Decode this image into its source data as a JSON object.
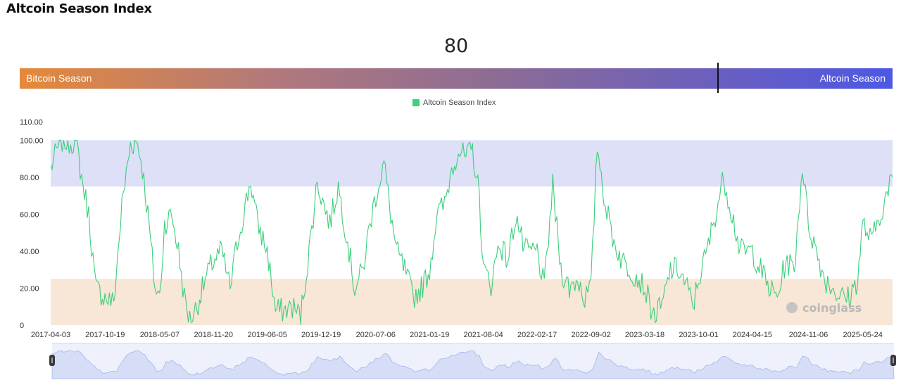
{
  "header": {
    "title": "Altcoin Season Index"
  },
  "current_value": "80",
  "gauge": {
    "left_label": "Bitcoin Season",
    "right_label": "Altcoin Season",
    "value": 80
  },
  "legend": {
    "series_name": "Altcoin Season Index",
    "color": "#3ccf7c"
  },
  "watermark": "coinglass",
  "chart_data": {
    "type": "line",
    "title": "",
    "xlabel": "",
    "ylabel": "",
    "ylim": [
      0,
      110
    ],
    "yticks": [
      "0",
      "20.00",
      "40.00",
      "60.00",
      "80.00",
      "100.00",
      "110.00"
    ],
    "xticks": [
      "2017-04-03",
      "2017-10-19",
      "2018-05-07",
      "2018-11-20",
      "2019-06-05",
      "2019-12-19",
      "2020-07-06",
      "2021-01-19",
      "2021-08-04",
      "2022-02-17",
      "2022-09-02",
      "2023-03-18",
      "2023-10-01",
      "2024-04-15",
      "2024-11-06",
      "2025-05-24"
    ],
    "bands": [
      {
        "name": "Altcoin Season zone",
        "from": 75,
        "to": 100,
        "color": "#dde0f7"
      },
      {
        "name": "Bitcoin Season zone",
        "from": 0,
        "to": 25,
        "color": "#f8e6d6"
      }
    ],
    "grid": false,
    "legend_position": "top-center",
    "series": [
      {
        "name": "Altcoin Season Index",
        "color": "#3ccf7c",
        "x": [
          "2017-04-03",
          "2017-05-10",
          "2017-06-10",
          "2017-07-05",
          "2017-07-25",
          "2017-08-20",
          "2017-09-15",
          "2017-10-19",
          "2017-11-20",
          "2017-12-20",
          "2018-01-20",
          "2018-02-15",
          "2018-03-05",
          "2018-03-25",
          "2018-04-20",
          "2018-05-07",
          "2018-05-25",
          "2018-06-20",
          "2018-07-15",
          "2018-08-05",
          "2018-08-25",
          "2018-09-20",
          "2018-10-15",
          "2018-11-05",
          "2018-11-20",
          "2018-12-20",
          "2019-01-20",
          "2019-02-15",
          "2019-03-10",
          "2019-04-05",
          "2019-04-30",
          "2019-06-05",
          "2019-07-05",
          "2019-08-05",
          "2019-09-05",
          "2019-10-05",
          "2019-11-05",
          "2019-12-05",
          "2019-12-19",
          "2020-01-20",
          "2020-02-20",
          "2020-03-20",
          "2020-04-20",
          "2020-05-20",
          "2020-06-15",
          "2020-07-06",
          "2020-08-05",
          "2020-08-25",
          "2020-09-20",
          "2020-10-20",
          "2020-11-20",
          "2020-12-20",
          "2021-01-19",
          "2021-02-15",
          "2021-03-15",
          "2021-04-10",
          "2021-05-05",
          "2021-06-01",
          "2021-06-25",
          "2021-07-20",
          "2021-08-04",
          "2021-09-01",
          "2021-10-01",
          "2021-11-01",
          "2021-12-01",
          "2022-01-01",
          "2022-02-17",
          "2022-03-15",
          "2022-04-15",
          "2022-05-15",
          "2022-06-15",
          "2022-07-15",
          "2022-08-10",
          "2022-09-02",
          "2022-09-25",
          "2022-10-25",
          "2022-11-25",
          "2022-12-25",
          "2023-01-25",
          "2023-02-25",
          "2023-03-18",
          "2023-04-20",
          "2023-05-20",
          "2023-06-20",
          "2023-07-20",
          "2023-08-20",
          "2023-09-10",
          "2023-10-01",
          "2023-11-01",
          "2023-12-01",
          "2024-01-01",
          "2024-02-01",
          "2024-03-01",
          "2024-04-15",
          "2024-05-15",
          "2024-06-15",
          "2024-07-15",
          "2024-08-15",
          "2024-09-15",
          "2024-10-15",
          "2024-11-06",
          "2024-12-05",
          "2025-01-05",
          "2025-02-05",
          "2025-03-05",
          "2025-04-05",
          "2025-05-05",
          "2025-05-24",
          "2025-06-25",
          "2025-07-25",
          "2025-08-20",
          "2025-09-10"
        ],
        "values": [
          85,
          100,
          99,
          100,
          80,
          60,
          20,
          15,
          12,
          65,
          98,
          99,
          85,
          60,
          20,
          15,
          55,
          60,
          40,
          15,
          3,
          10,
          22,
          30,
          35,
          40,
          20,
          45,
          60,
          78,
          55,
          40,
          8,
          8,
          10,
          5,
          40,
          78,
          70,
          55,
          75,
          50,
          20,
          30,
          55,
          70,
          88,
          65,
          40,
          30,
          15,
          20,
          30,
          60,
          65,
          85,
          95,
          90,
          95,
          70,
          30,
          22,
          45,
          35,
          60,
          40,
          40,
          20,
          75,
          30,
          20,
          25,
          15,
          20,
          98,
          65,
          45,
          35,
          30,
          25,
          20,
          5,
          10,
          30,
          30,
          20,
          10,
          25,
          40,
          60,
          80,
          60,
          40,
          40,
          30,
          20,
          15,
          35,
          30,
          87,
          55,
          40,
          25,
          20,
          15,
          15,
          25,
          55,
          45,
          60,
          70,
          80
        ]
      }
    ]
  }
}
